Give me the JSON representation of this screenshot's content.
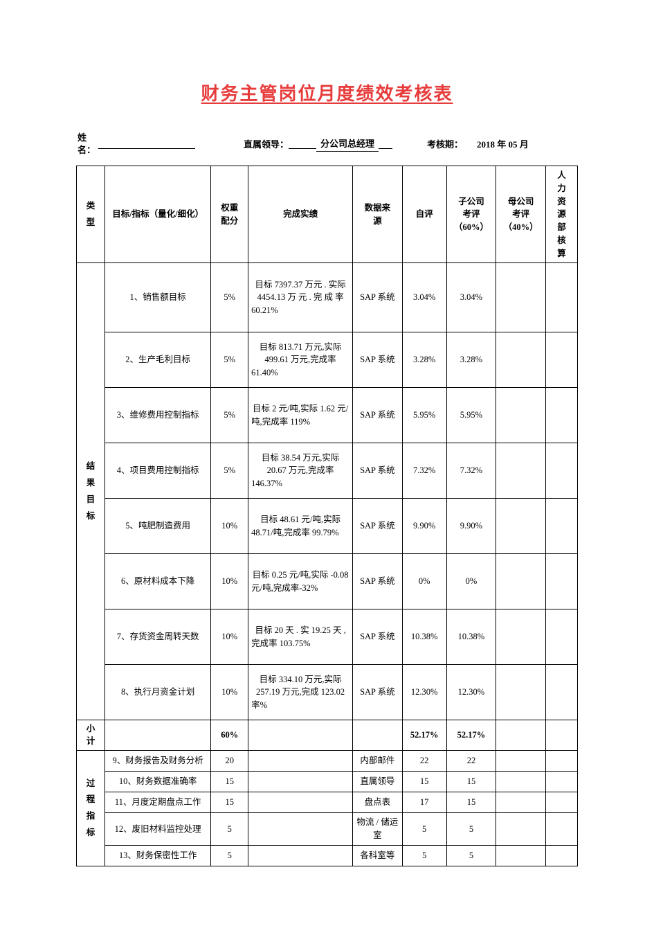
{
  "title": "财务主管岗位月度绩效考核表",
  "meta": {
    "name_label": "姓名：",
    "leader_label": "直属领导：",
    "leader_value": "分公司总经理",
    "period_label": "考核期：",
    "period_value": "2018 年 05 月"
  },
  "headers": {
    "c1": "类型",
    "c2": "目标/指标（量化/细化）",
    "c3": "权重配分",
    "c4": "完成实绩",
    "c5": "数据来源",
    "c6": "自评",
    "c7": "子公司考评（60%）",
    "c8": "母公司考评（40%）",
    "c9": "人力资源部核算"
  },
  "section1_label": "结果目标",
  "section1": [
    {
      "t": "1、销售额目标",
      "w": "5%",
      "p": "目标  7397.37  万元 . 实际  4454.13 万  元  .  完  成  率 60.21%",
      "s": "SAP 系统",
      "a": "3.04%",
      "b": "3.04%",
      "h": "tall1"
    },
    {
      "t": "2、生产毛利目标",
      "w": "5%",
      "p": "目标 813.71 万元,实际 499.61 万元,完成率 61.40%",
      "s": "SAP 系统",
      "a": "3.28%",
      "b": "3.28%",
      "h": "tall2"
    },
    {
      "t": "3、维修费用控制指标",
      "w": "5%",
      "p": "目标 2 元/吨,实际 1.62 元/吨,完成率 119%",
      "s": "SAP 系统",
      "a": "5.95%",
      "b": "5.95%",
      "h": "tall2"
    },
    {
      "t": "4、项目费用控制指标",
      "w": "5%",
      "p": "目标  38.54  万元,实际  20.67  万元,完成率 146.37%",
      "s": "SAP 系统",
      "a": "7.32%",
      "b": "7.32%",
      "h": "tall2"
    },
    {
      "t": "5、吨肥制造费用",
      "w": "10%",
      "p": "目标  48.61  元/吨,实际  48.71/吨,完成率 99.79%",
      "s": "SAP 系统",
      "a": "9.90%",
      "b": "9.90%",
      "h": "tall2"
    },
    {
      "t": "6、原材料成本下降",
      "w": "10%",
      "p": "目标  0.25  元/吨,实际 -0.08  元/吨,完成率-32%",
      "s": "SAP 系统",
      "a": "0%",
      "b": "0%",
      "h": "tall2"
    },
    {
      "t": "7、存货资金周转天数",
      "w": "10%",
      "p": "目标  20  天 . 实 19.25  天 ,完成率 103.75%",
      "s": "SAP 系统",
      "a": "10.38%",
      "b": "10.38%",
      "h": "tall2"
    },
    {
      "t": "8、执行月资金计划",
      "w": "10%",
      "p": "目标 334.10 万元,实际 257.19 万元,完成 123.02 率%",
      "s": "SAP 系统",
      "a": "12.30%",
      "b": "12.30%",
      "h": "tall2"
    }
  ],
  "subtotal": {
    "label": "小计",
    "w": "60%",
    "a": "52.17%",
    "b": "52.17%"
  },
  "section2_label": "过程指标",
  "section2": [
    {
      "t": "9、财务报告及财务分析",
      "w": "20",
      "s": "内部邮件",
      "a": "22",
      "b": "22"
    },
    {
      "t": "10、财务数据准确率",
      "w": "15",
      "s": "直属领导",
      "a": "15",
      "b": "15"
    },
    {
      "t": "11、月度定期盘点工作",
      "w": "15",
      "s": "盘点表",
      "a": "17",
      "b": "15"
    },
    {
      "t": "12、废旧材料监控处理",
      "w": "5",
      "s": "物流 / 储运室",
      "a": "5",
      "b": "5"
    },
    {
      "t": "13、财务保密性工作",
      "w": "5",
      "s": "各科室等",
      "a": "5",
      "b": "5"
    }
  ]
}
